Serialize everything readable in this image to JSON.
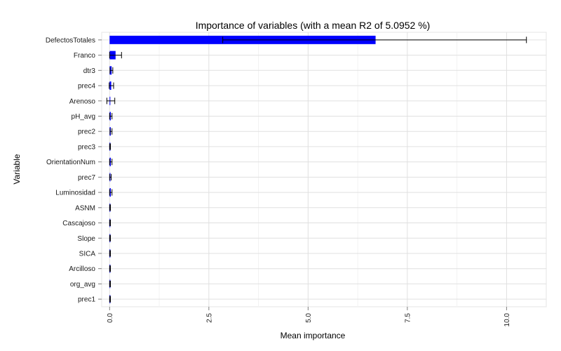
{
  "chart_data": {
    "type": "bar",
    "orientation": "horizontal",
    "title": "Importance of variables (with a mean R2 of 5.0952 %)",
    "xlabel": "Mean importance",
    "ylabel": "Variable",
    "xlim": [
      -0.2,
      11.0
    ],
    "xticks": [
      0,
      2.5,
      5,
      7.5,
      10
    ],
    "xtick_labels": [
      "0.0",
      "2.5",
      "5.0",
      "7.5",
      "10.0"
    ],
    "grid": true,
    "bar_color": "#0000ff",
    "categories": [
      "DefectosTotales",
      "Franco",
      "dtr3",
      "prec4",
      "Arenoso",
      "pH_avg",
      "prec2",
      "prec3",
      "OrientationNum",
      "prec7",
      "Luminosidad",
      "ASNM",
      "Cascajoso",
      "Slope",
      "SICA",
      "Arcilloso",
      "org_avg",
      "prec1"
    ],
    "values": [
      6.7,
      0.15,
      0.05,
      0.04,
      0.0,
      0.03,
      0.03,
      0.01,
      0.03,
      0.02,
      0.03,
      0.01,
      0.01,
      0.01,
      0.01,
      0.01,
      0.01,
      0.01
    ],
    "error_low": [
      2.85,
      0.0,
      0.01,
      -0.01,
      -0.07,
      0.0,
      0.01,
      0.0,
      0.0,
      0.0,
      0.0,
      0.0,
      0.0,
      0.0,
      0.0,
      0.0,
      0.0,
      0.0
    ],
    "error_high": [
      10.5,
      0.3,
      0.08,
      0.1,
      0.13,
      0.06,
      0.06,
      0.02,
      0.06,
      0.04,
      0.06,
      0.02,
      0.02,
      0.02,
      0.02,
      0.02,
      0.02,
      0.02
    ]
  }
}
